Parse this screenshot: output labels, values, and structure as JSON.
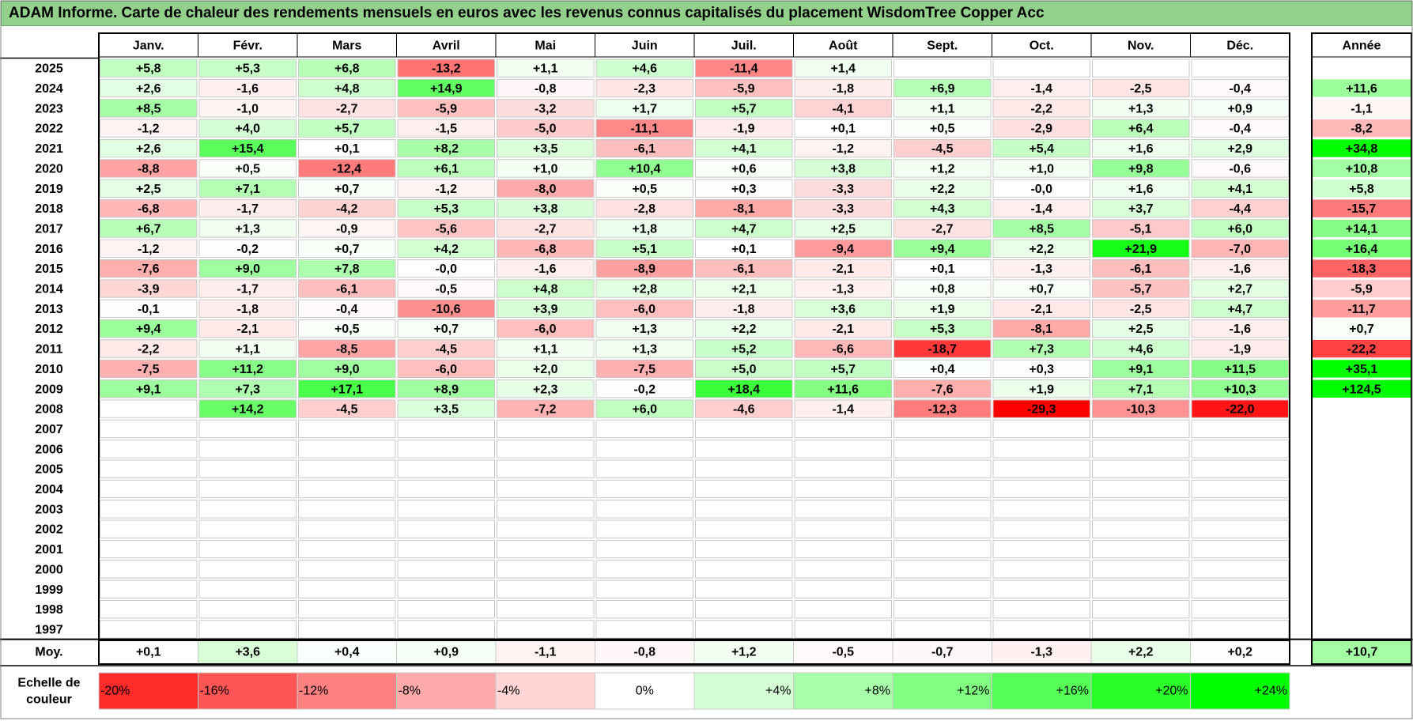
{
  "title": "ADAM Informe. Carte de chaleur des rendements mensuels en euros avec les revenus connus capitalisés du placement WisdomTree Copper Acc",
  "chart_data": {
    "type": "heatmap",
    "months": [
      "Janv.",
      "Févr.",
      "Mars",
      "Avril",
      "Mai",
      "Juin",
      "Juil.",
      "Août",
      "Sept.",
      "Oct.",
      "Nov.",
      "Déc."
    ],
    "year_header": "Année",
    "rows": [
      {
        "year": "2025",
        "values": [
          "+5,8",
          "+5,3",
          "+6,8",
          "-13,2",
          "+1,1",
          "+4,6",
          "-11,4",
          "+1,4",
          null,
          null,
          null,
          null
        ],
        "annual": null
      },
      {
        "year": "2024",
        "values": [
          "+2,6",
          "-1,6",
          "+4,8",
          "+14,9",
          "-0,8",
          "-2,3",
          "-5,9",
          "-1,8",
          "+6,9",
          "-1,4",
          "-2,5",
          "-0,4"
        ],
        "annual": "+11,6"
      },
      {
        "year": "2023",
        "values": [
          "+8,5",
          "-1,0",
          "-2,7",
          "-5,9",
          "-3,2",
          "+1,7",
          "+5,7",
          "-4,1",
          "+1,1",
          "-2,2",
          "+1,3",
          "+0,9"
        ],
        "annual": "-1,1"
      },
      {
        "year": "2022",
        "values": [
          "-1,2",
          "+4,0",
          "+5,7",
          "-1,5",
          "-5,0",
          "-11,1",
          "-1,9",
          "+0,1",
          "+0,5",
          "-2,9",
          "+6,4",
          "-0,4"
        ],
        "annual": "-8,2"
      },
      {
        "year": "2021",
        "values": [
          "+2,6",
          "+15,4",
          "+0,1",
          "+8,2",
          "+3,5",
          "-6,1",
          "+4,1",
          "-1,2",
          "-4,5",
          "+5,4",
          "+1,6",
          "+2,9"
        ],
        "annual": "+34,8"
      },
      {
        "year": "2020",
        "values": [
          "-8,8",
          "+0,5",
          "-12,4",
          "+6,1",
          "+1,0",
          "+10,4",
          "+0,6",
          "+3,8",
          "+1,2",
          "+1,0",
          "+9,8",
          "-0,6"
        ],
        "annual": "+10,8"
      },
      {
        "year": "2019",
        "values": [
          "+2,5",
          "+7,1",
          "+0,7",
          "-1,2",
          "-8,0",
          "+0,5",
          "+0,3",
          "-3,3",
          "+2,2",
          "-0,0",
          "+1,6",
          "+4,1"
        ],
        "annual": "+5,8"
      },
      {
        "year": "2018",
        "values": [
          "-6,8",
          "-1,7",
          "-4,2",
          "+5,3",
          "+3,8",
          "-2,8",
          "-8,1",
          "-3,3",
          "+4,3",
          "-1,4",
          "+3,7",
          "-4,4"
        ],
        "annual": "-15,7"
      },
      {
        "year": "2017",
        "values": [
          "+6,7",
          "+1,3",
          "-0,9",
          "-5,6",
          "-2,7",
          "+1,8",
          "+4,7",
          "+2,5",
          "-2,7",
          "+8,5",
          "-5,1",
          "+6,0"
        ],
        "annual": "+14,1"
      },
      {
        "year": "2016",
        "values": [
          "-1,2",
          "-0,2",
          "+0,7",
          "+4,2",
          "-6,8",
          "+5,1",
          "+0,1",
          "-9,4",
          "+9,4",
          "+2,2",
          "+21,9",
          "-7,0"
        ],
        "annual": "+16,4"
      },
      {
        "year": "2015",
        "values": [
          "-7,6",
          "+9,0",
          "+7,8",
          "-0,0",
          "-1,6",
          "-8,9",
          "-6,1",
          "-2,1",
          "+0,1",
          "-1,3",
          "-6,1",
          "-1,6"
        ],
        "annual": "-18,3"
      },
      {
        "year": "2014",
        "values": [
          "-3,9",
          "-1,7",
          "-6,1",
          "-0,5",
          "+4,8",
          "+2,8",
          "+2,1",
          "-1,3",
          "+0,8",
          "+0,7",
          "-5,7",
          "+2,7"
        ],
        "annual": "-5,9"
      },
      {
        "year": "2013",
        "values": [
          "-0,1",
          "-1,8",
          "-0,4",
          "-10,6",
          "+3,9",
          "-6,0",
          "-1,8",
          "+3,6",
          "+1,9",
          "-2,1",
          "-2,5",
          "+4,7"
        ],
        "annual": "-11,7"
      },
      {
        "year": "2012",
        "values": [
          "+9,4",
          "-2,1",
          "+0,5",
          "+0,7",
          "-6,0",
          "+1,3",
          "+2,2",
          "-2,1",
          "+5,3",
          "-8,1",
          "+2,5",
          "-1,6"
        ],
        "annual": "+0,7"
      },
      {
        "year": "2011",
        "values": [
          "-2,2",
          "+1,1",
          "-8,5",
          "-4,5",
          "+1,1",
          "+1,3",
          "+5,2",
          "-6,6",
          "-18,7",
          "+7,3",
          "+4,6",
          "-1,9"
        ],
        "annual": "-22,2"
      },
      {
        "year": "2010",
        "values": [
          "-7,5",
          "+11,2",
          "+9,0",
          "-6,0",
          "+2,0",
          "-7,5",
          "+5,0",
          "+5,7",
          "+0,4",
          "+0,3",
          "+9,1",
          "+11,5"
        ],
        "annual": "+35,1"
      },
      {
        "year": "2009",
        "values": [
          "+9,1",
          "+7,3",
          "+17,1",
          "+8,9",
          "+2,3",
          "-0,2",
          "+18,4",
          "+11,6",
          "-7,6",
          "+1,9",
          "+7,1",
          "+10,3"
        ],
        "annual": "+124,5"
      },
      {
        "year": "2008",
        "values": [
          null,
          "+14,2",
          "-4,5",
          "+3,5",
          "-7,2",
          "+6,0",
          "-4,6",
          "-1,4",
          "-12,3",
          "-29,3",
          "-10,3",
          "-22,0"
        ],
        "annual": null
      },
      {
        "year": "2007",
        "values": [
          null,
          null,
          null,
          null,
          null,
          null,
          null,
          null,
          null,
          null,
          null,
          null
        ],
        "annual": null
      },
      {
        "year": "2006",
        "values": [
          null,
          null,
          null,
          null,
          null,
          null,
          null,
          null,
          null,
          null,
          null,
          null
        ],
        "annual": null
      },
      {
        "year": "2005",
        "values": [
          null,
          null,
          null,
          null,
          null,
          null,
          null,
          null,
          null,
          null,
          null,
          null
        ],
        "annual": null
      },
      {
        "year": "2004",
        "values": [
          null,
          null,
          null,
          null,
          null,
          null,
          null,
          null,
          null,
          null,
          null,
          null
        ],
        "annual": null
      },
      {
        "year": "2003",
        "values": [
          null,
          null,
          null,
          null,
          null,
          null,
          null,
          null,
          null,
          null,
          null,
          null
        ],
        "annual": null
      },
      {
        "year": "2002",
        "values": [
          null,
          null,
          null,
          null,
          null,
          null,
          null,
          null,
          null,
          null,
          null,
          null
        ],
        "annual": null
      },
      {
        "year": "2001",
        "values": [
          null,
          null,
          null,
          null,
          null,
          null,
          null,
          null,
          null,
          null,
          null,
          null
        ],
        "annual": null
      },
      {
        "year": "2000",
        "values": [
          null,
          null,
          null,
          null,
          null,
          null,
          null,
          null,
          null,
          null,
          null,
          null
        ],
        "annual": null
      },
      {
        "year": "1999",
        "values": [
          null,
          null,
          null,
          null,
          null,
          null,
          null,
          null,
          null,
          null,
          null,
          null
        ],
        "annual": null
      },
      {
        "year": "1998",
        "values": [
          null,
          null,
          null,
          null,
          null,
          null,
          null,
          null,
          null,
          null,
          null,
          null
        ],
        "annual": null
      },
      {
        "year": "1997",
        "values": [
          null,
          null,
          null,
          null,
          null,
          null,
          null,
          null,
          null,
          null,
          null,
          null
        ],
        "annual": null
      }
    ],
    "average": {
      "label": "Moy.",
      "values": [
        "+0,1",
        "+3,6",
        "+0,4",
        "+0,9",
        "-1,1",
        "-0,8",
        "+1,2",
        "-0,5",
        "-0,7",
        "-1,3",
        "+2,2",
        "+0,2"
      ],
      "annual": "+10,7"
    },
    "scale": {
      "label_line1": "Echelle de",
      "label_line2": "couleur",
      "stops": [
        "-20%",
        "-16%",
        "-12%",
        "-8%",
        "-4%",
        "0%",
        "+4%",
        "+8%",
        "+12%",
        "+16%",
        "+20%",
        "+24%"
      ]
    },
    "colors": {
      "negative_max": "#ff0000",
      "neutral": "#ffffff",
      "positive_max": "#00ff00",
      "title_bg": "#92d08c",
      "grid": "#bfbfbf"
    }
  }
}
